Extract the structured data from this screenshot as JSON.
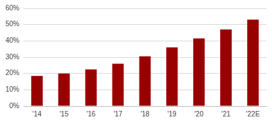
{
  "chart_data": {
    "type": "bar",
    "categories": [
      "'14",
      "'15",
      "'16",
      "'17",
      "'18",
      "'19",
      "'20",
      "'21",
      "'22E"
    ],
    "values": [
      18.5,
      20,
      22.5,
      26,
      30.5,
      36,
      41.5,
      47,
      53
    ],
    "color": "#990000",
    "ylim": [
      0,
      60
    ],
    "yticks": [
      {
        "value": 0,
        "label": "0%"
      },
      {
        "value": 10,
        "label": "10%"
      },
      {
        "value": 20,
        "label": "20%"
      },
      {
        "value": 30,
        "label": "30%"
      },
      {
        "value": 40,
        "label": "40%"
      },
      {
        "value": 50,
        "label": "50%"
      },
      {
        "value": 60,
        "label": "60%"
      }
    ],
    "grid": true
  }
}
